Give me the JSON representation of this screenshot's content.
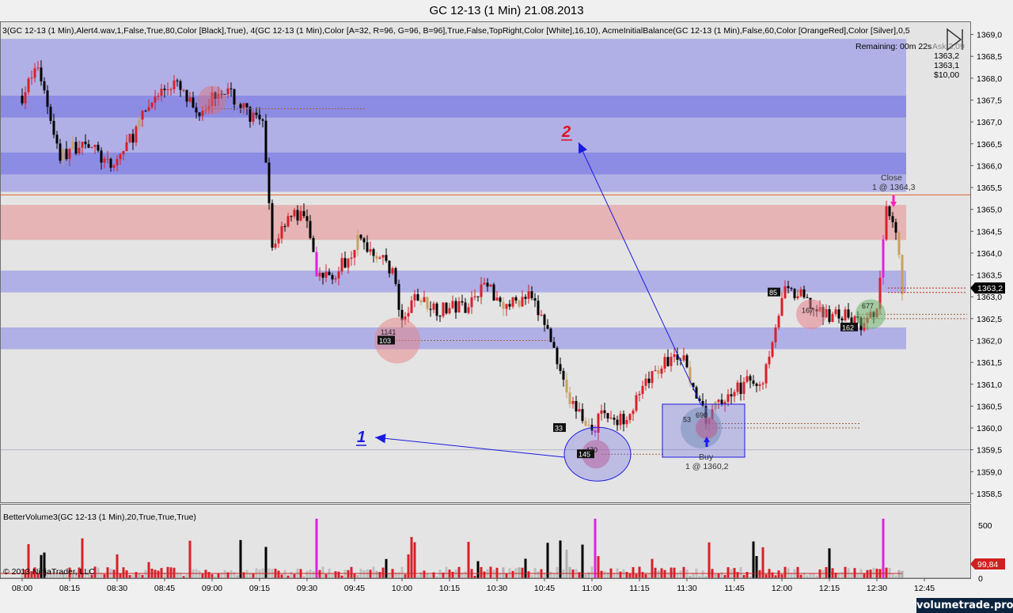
{
  "window": {
    "title": "GC 12-13 (1 Min)  21.08.2013"
  },
  "price_panel": {
    "indicator_line": "3(GC 12-13 (1 Min),Alert4.wav,1,False,True,80,Color [Black],True), 4(GC 12-13 (1 Min),Color [A=32, R=96, G=96, B=96],True,False,TopRight,Color [White],16,10), AcmeInitialBalance(GC 12-13 (1 Min),False,60,Color [OrangeRed],Color [Silver],0,5",
    "remaining": "Remaining: 00m 22s",
    "ask_label": "Ask 3,09",
    "quote": [
      "1363,2",
      "1363,1",
      "$10,00"
    ],
    "last_price": "1363,2",
    "close_label": "Close",
    "close_fill": "1 @ 1364,3",
    "buy_label": "Buy",
    "buy_fill": "1 @ 1360,2",
    "annot_1": "1",
    "annot_2": "2",
    "volume_tags": [
      "1141",
      "103",
      "33",
      "145",
      "470",
      "53",
      "690",
      "85",
      "167",
      "677",
      "162"
    ]
  },
  "volume_panel": {
    "title": "BetterVolume3(GC 12-13 (1 Min),20,True,True,True)",
    "current_value": "99,84",
    "copyright": "© 2013 NinjaTrader, LLC"
  },
  "watermark": "volumetrade.pro",
  "colors": {
    "up_bar": "#d8202a",
    "down_bar": "#000000",
    "neutral_bar": "#c8a060",
    "climax_bar": "#e020e0",
    "blue_zone": "#9090e0",
    "red_zone": "#e8b0b0",
    "annotation": "#1a1ae0"
  },
  "chart_data": {
    "type": "candlestick",
    "instrument": "GC 12-13 (1 Min)",
    "date": "21.08.2013",
    "x_ticks": [
      "08:00",
      "08:15",
      "08:30",
      "08:45",
      "09:00",
      "09:15",
      "09:30",
      "09:45",
      "10:00",
      "10:15",
      "10:30",
      "10:45",
      "11:00",
      "11:15",
      "11:30",
      "11:45",
      "12:00",
      "12:15",
      "12:30",
      "12:45"
    ],
    "y_ticks": [
      "1358,5",
      "1359,0",
      "1359,5",
      "1360,0",
      "1360,5",
      "1361,0",
      "1361,5",
      "1362,0",
      "1362,5",
      "1363,0",
      "1363,5",
      "1364,0",
      "1364,5",
      "1365,0",
      "1365,5",
      "1366,0",
      "1366,5",
      "1367,0",
      "1367,5",
      "1368,0",
      "1368,5",
      "1369,0"
    ],
    "ylim": [
      1358.3,
      1369.3
    ],
    "price_anchors": [
      [
        "08:00",
        1367.6
      ],
      [
        "08:05",
        1368.3
      ],
      [
        "08:12",
        1366.2
      ],
      [
        "08:20",
        1366.6
      ],
      [
        "08:28",
        1365.9
      ],
      [
        "08:35",
        1366.7
      ],
      [
        "08:42",
        1367.6
      ],
      [
        "08:48",
        1367.9
      ],
      [
        "08:55",
        1367.2
      ],
      [
        "09:03",
        1367.8
      ],
      [
        "09:10",
        1367.3
      ],
      [
        "09:16",
        1366.9
      ],
      [
        "09:19",
        1364.1
      ],
      [
        "09:24",
        1364.9
      ],
      [
        "09:30",
        1364.8
      ],
      [
        "09:33",
        1363.4
      ],
      [
        "09:40",
        1363.6
      ],
      [
        "09:46",
        1364.3
      ],
      [
        "09:52",
        1364.0
      ],
      [
        "09:57",
        1363.6
      ],
      [
        "10:00",
        1362.3
      ],
      [
        "10:04",
        1363.0
      ],
      [
        "10:12",
        1362.7
      ],
      [
        "10:20",
        1362.8
      ],
      [
        "10:26",
        1363.3
      ],
      [
        "10:33",
        1362.8
      ],
      [
        "10:40",
        1363.0
      ],
      [
        "10:45",
        1362.4
      ],
      [
        "10:50",
        1361.4
      ],
      [
        "10:53",
        1360.6
      ],
      [
        "10:58",
        1360.2
      ],
      [
        "11:00",
        1359.8
      ],
      [
        "11:03",
        1360.4
      ],
      [
        "11:08",
        1360.1
      ],
      [
        "11:13",
        1360.5
      ],
      [
        "11:20",
        1361.3
      ],
      [
        "11:25",
        1361.6
      ],
      [
        "11:30",
        1361.5
      ],
      [
        "11:33",
        1360.6
      ],
      [
        "11:36",
        1360.2
      ],
      [
        "11:42",
        1360.7
      ],
      [
        "11:48",
        1361.0
      ],
      [
        "11:54",
        1361.1
      ],
      [
        "11:58",
        1362.4
      ],
      [
        "12:01",
        1363.1
      ],
      [
        "12:06",
        1363.0
      ],
      [
        "12:12",
        1362.6
      ],
      [
        "12:18",
        1362.6
      ],
      [
        "12:22",
        1362.5
      ],
      [
        "12:26",
        1362.3
      ],
      [
        "12:30",
        1362.7
      ],
      [
        "12:33",
        1364.9
      ],
      [
        "12:36",
        1364.4
      ],
      [
        "12:38",
        1363.2
      ]
    ],
    "zones": [
      {
        "kind": "blue",
        "from": 1365.4,
        "to": 1368.9
      },
      {
        "kind": "blue_dark",
        "from": 1367.1,
        "to": 1367.6
      },
      {
        "kind": "blue_dark",
        "from": 1365.8,
        "to": 1366.3
      },
      {
        "kind": "red",
        "from": 1364.3,
        "to": 1365.1
      },
      {
        "kind": "blue",
        "from": 1363.1,
        "to": 1363.6
      },
      {
        "kind": "blue",
        "from": 1361.8,
        "to": 1362.3
      }
    ],
    "initial_balance_line": 1365.33,
    "last_price": 1363.2
  }
}
